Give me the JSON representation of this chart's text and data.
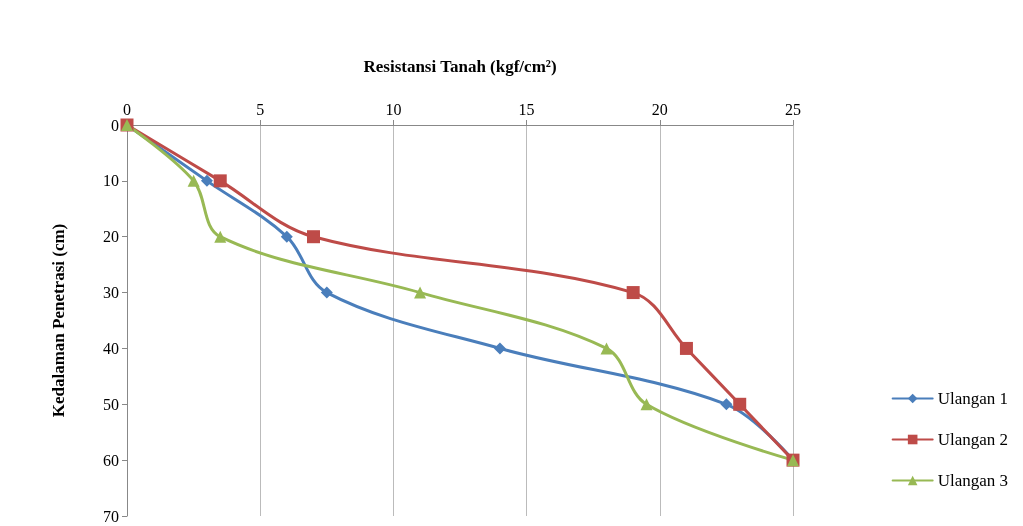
{
  "chart_data": {
    "type": "line",
    "xlabel": "Resistansi Tanah (kgf/cm²)",
    "ylabel": "Kedalaman Penetrasi (cm)",
    "xlim": [
      0,
      25
    ],
    "xticks": [
      0,
      5,
      10,
      15,
      20,
      25
    ],
    "ylim": [
      70,
      0
    ],
    "yticks": [
      0,
      10,
      20,
      30,
      40,
      50,
      60,
      70
    ],
    "grid": "x",
    "legend": "right",
    "series": [
      {
        "name": "Ulangan 1",
        "color": "#4a7ebb",
        "marker": "diamond",
        "x": [
          0,
          3,
          6,
          7.5,
          14,
          22.5,
          25
        ],
        "values": [
          0,
          10,
          20,
          30,
          40,
          50,
          60
        ]
      },
      {
        "name": "Ulangan 2",
        "color": "#be4b48",
        "marker": "square",
        "x": [
          0,
          3.5,
          7,
          19,
          21,
          23,
          25
        ],
        "values": [
          0,
          10,
          20,
          30,
          40,
          50,
          60
        ]
      },
      {
        "name": "Ulangan 3",
        "color": "#98b954",
        "marker": "triangle",
        "x": [
          0,
          2.5,
          3.5,
          11,
          18,
          19.5,
          25
        ],
        "values": [
          0,
          10,
          20,
          30,
          40,
          50,
          60
        ]
      }
    ]
  }
}
